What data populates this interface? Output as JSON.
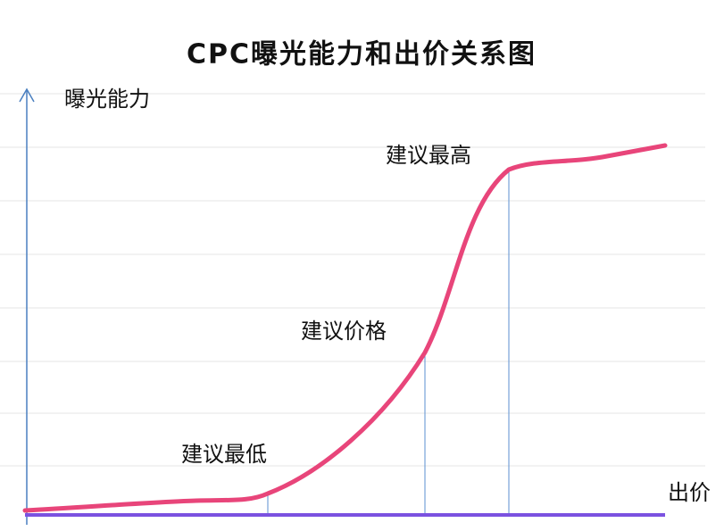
{
  "title": "CPC曝光能力和出价关系图",
  "y_axis_label": "曝光能力",
  "x_axis_label": "出价",
  "annotations": [
    "建议最高",
    "建议价格",
    "建议最低"
  ]
}
